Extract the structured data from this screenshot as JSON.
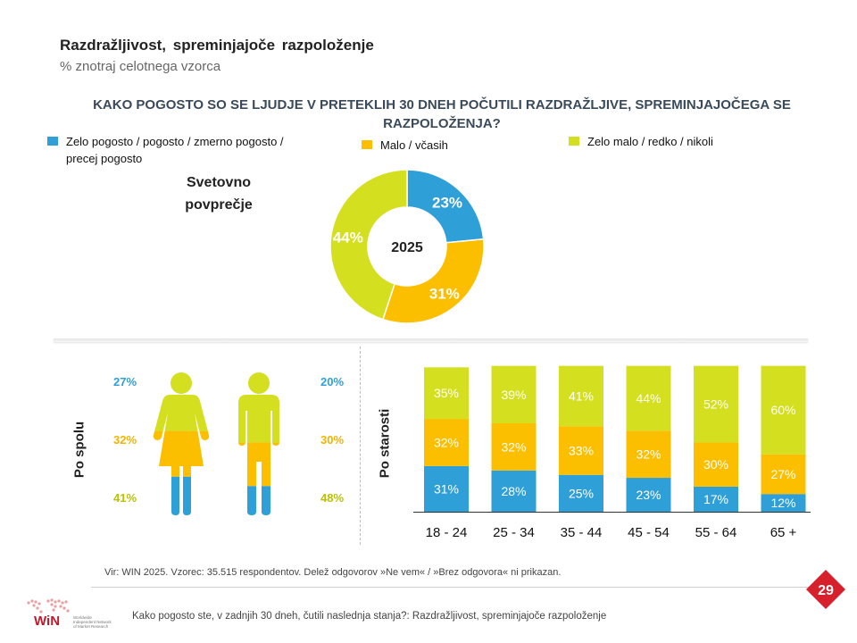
{
  "header": {
    "title": "Razdražljivost, spreminjajoče razpoloženje",
    "subtitle": "% znotraj celotnega vzorca",
    "question_line1": "KAKO POGOSTO SO SE LJUDJE V PRETEKLIH 30 DNEH POČUTILI RAZDRAŽLJIVE, SPREMINJAJOČEGA SE",
    "question_line2": "RAZPOLOŽENJA?"
  },
  "legend": [
    {
      "line1": "Zelo pogosto / pogosto / zmerno pogosto /",
      "line2": "precej pogosto",
      "color": "#2f9fd8"
    },
    {
      "line1": "Malo / včasih",
      "line2": "",
      "color": "#fbbf00"
    },
    {
      "line1": "Zelo malo / redko / nikoli",
      "line2": "",
      "color": "#d4df20"
    }
  ],
  "global": {
    "label_line1": "Svetovno",
    "label_line2": "povprečje",
    "center_label": "2025"
  },
  "gender": {
    "axis_title": "Po spolu"
  },
  "age": {
    "axis_title": "Po starosti"
  },
  "chart_data": [
    {
      "type": "pie",
      "variant": "donut",
      "center_label": "2025",
      "categories": [
        "Zelo pogosto / pogosto / zmerno pogosto / precej pogosto",
        "Malo / včasih",
        "Zelo malo / redko / nikoli"
      ],
      "values": [
        23,
        31,
        44
      ],
      "labels": [
        "23%",
        "31%",
        "44%"
      ],
      "colors": [
        "#2f9fd8",
        "#fbbf00",
        "#d4df20"
      ]
    },
    {
      "type": "bar",
      "stacked": true,
      "title": "Po spolu",
      "categories": [
        "Ženske",
        "Moški"
      ],
      "series": [
        {
          "name": "Zelo pogosto / pogosto / zmerno pogosto / precej pogosto",
          "values": [
            27,
            20
          ],
          "labels": [
            "27%",
            "20%"
          ],
          "color": "#2f9fd8"
        },
        {
          "name": "Malo / včasih",
          "values": [
            32,
            30
          ],
          "labels": [
            "32%",
            "30%"
          ],
          "color": "#fbbf00"
        },
        {
          "name": "Zelo malo / redko / nikoli",
          "values": [
            41,
            48
          ],
          "labels": [
            "41%",
            "48%"
          ],
          "color": "#d4df20"
        }
      ]
    },
    {
      "type": "bar",
      "stacked": true,
      "title": "Po starosti",
      "categories": [
        "18 - 24",
        "25 - 34",
        "35 - 44",
        "45 - 54",
        "55 - 64",
        "65 +"
      ],
      "series": [
        {
          "name": "Zelo pogosto / pogosto / zmerno pogosto / precej pogosto",
          "values": [
            31,
            28,
            25,
            23,
            17,
            12
          ],
          "labels": [
            "31%",
            "28%",
            "25%",
            "23%",
            "17%",
            "12%"
          ],
          "color": "#2f9fd8"
        },
        {
          "name": "Malo / včasih",
          "values": [
            32,
            32,
            33,
            32,
            30,
            27
          ],
          "labels": [
            "32%",
            "32%",
            "33%",
            "32%",
            "30%",
            "27%"
          ],
          "color": "#fbbf00"
        },
        {
          "name": "Zelo malo / redko / nikoli",
          "values": [
            35,
            39,
            41,
            44,
            52,
            60
          ],
          "labels": [
            "35%",
            "39%",
            "41%",
            "44%",
            "52%",
            "60%"
          ],
          "color": "#d4df20"
        }
      ]
    }
  ],
  "footer": {
    "source": "Vir: WIN 2025.  Vzorec: 35.515  respondentov. Delež odgovorov »Ne vem« / »Brez odgovora« ni prikazan.",
    "question_note": "Kako pogosto ste, v zadnjih 30 dneh, čutili naslednja stanja?: Razdražljivost, spreminjajoče razpoloženje",
    "page_number": "29",
    "logo_text": "WiN",
    "logo_subtext_1": "Worldwide",
    "logo_subtext_2": "Independent Network",
    "logo_subtext_3": "of Market Research"
  }
}
